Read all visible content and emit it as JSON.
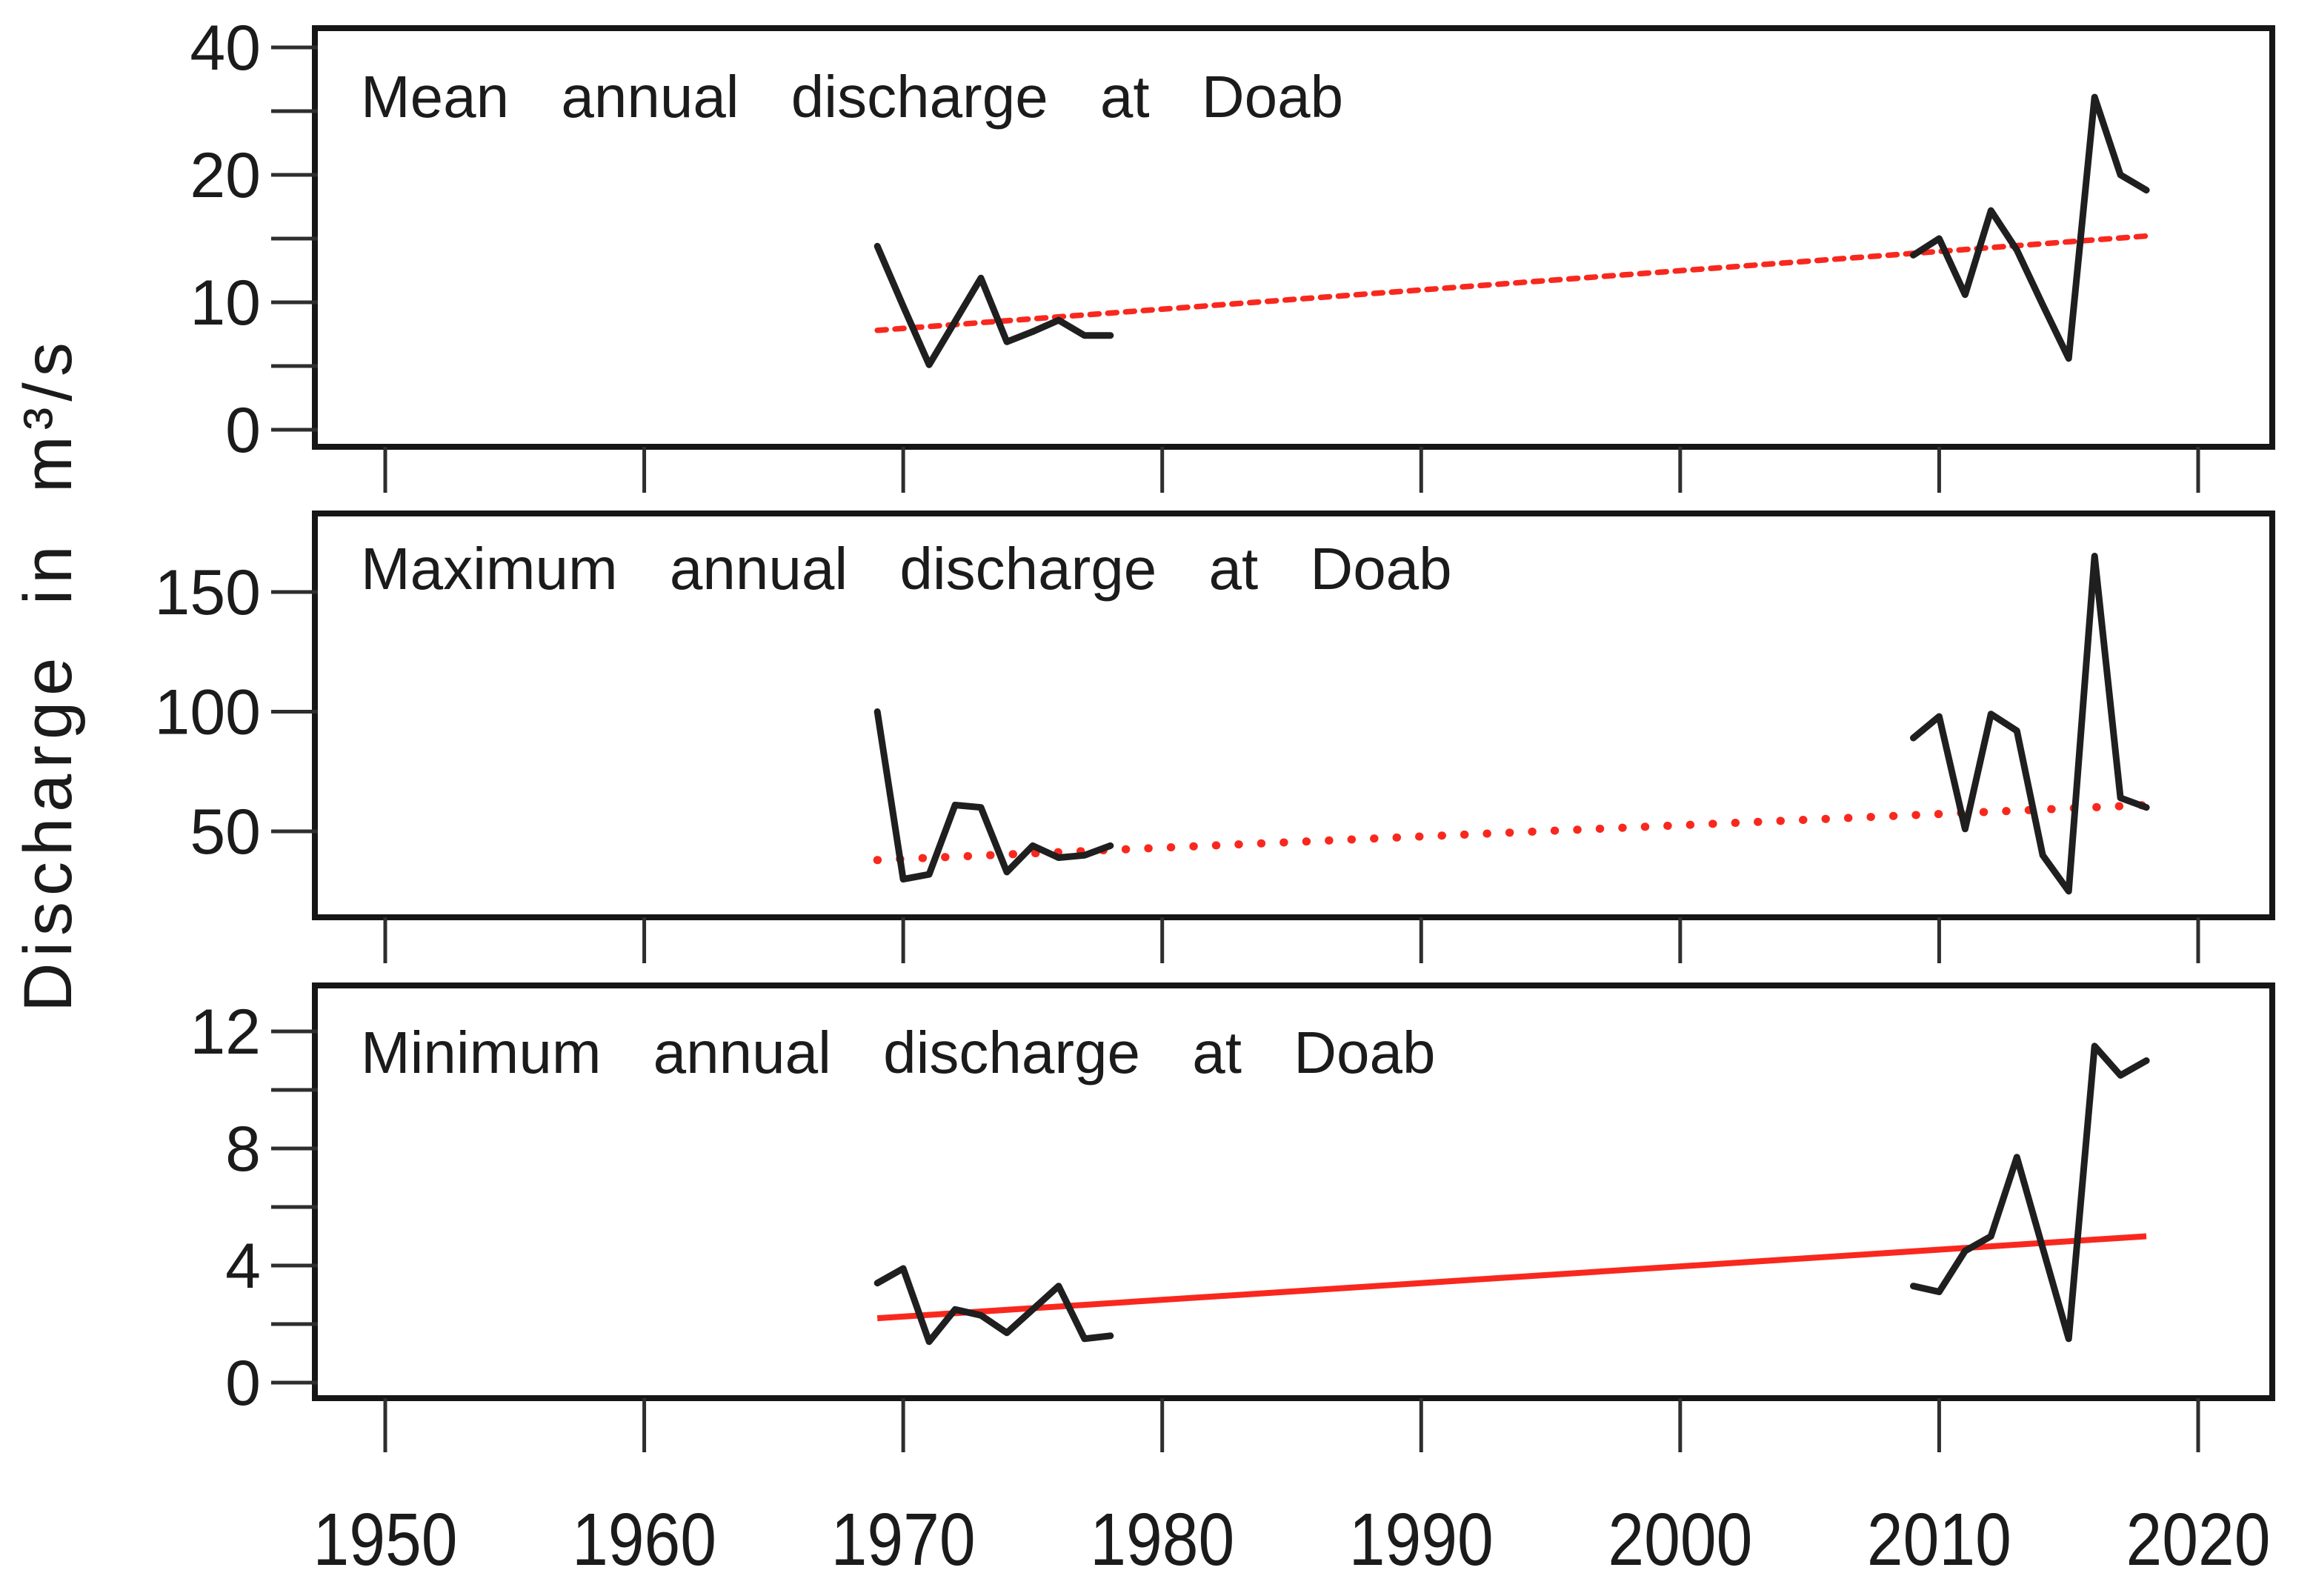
{
  "figure": {
    "ylabel": "Discharge in m³/s"
  },
  "x_axis": {
    "tick_years": [
      1950,
      1960,
      1970,
      1980,
      1990,
      2000,
      2010,
      2020
    ],
    "tick_labels": [
      "1950",
      "1960",
      "1970",
      "1980",
      "1990",
      "2000",
      "2010",
      "2020"
    ]
  },
  "colors": {
    "data_line": "#1f1f1f",
    "trend_line": "#f9281e",
    "frame": "#161616",
    "tick": "#2e2e2e",
    "background": "#ffffff"
  },
  "chart_data": [
    {
      "type": "line",
      "title": "Mean annual discharge at Doab",
      "y_axis": {
        "tick_values": [
          40,
          20,
          10,
          0
        ],
        "tick_labels": [
          "40",
          "20",
          "10",
          "0"
        ],
        "minor_tick_values": [
          30,
          15,
          5
        ],
        "scale_note": "nonlinear axis: ticks 0,5,10,15,20,30,40 equally spaced"
      },
      "series": [
        {
          "name": "mean annual discharge",
          "segments": [
            {
              "years": [
                1969,
                1970,
                1971,
                1972,
                1973,
                1974,
                1975,
                1976,
                1977,
                1978
              ],
              "values": [
                14.4,
                9.7,
                5.1,
                8.5,
                11.9,
                6.9,
                7.7,
                8.6,
                7.4,
                7.4
              ]
            },
            {
              "years": [
                2009,
                2010,
                2011,
                2012,
                2013,
                2014,
                2015,
                2016,
                2017,
                2018
              ],
              "values": [
                13.7,
                15.0,
                10.6,
                17.2,
                14.1,
                9.8,
                5.6,
                32.2,
                20.0,
                18.8
              ]
            }
          ]
        }
      ],
      "trend": {
        "style": "dashed",
        "start_year": 1969,
        "start_value": 7.8,
        "end_year": 2018,
        "end_value": 15.2
      }
    },
    {
      "type": "line",
      "title": "Maximum annual discharge at Doab",
      "y_axis": {
        "tick_values": [
          150,
          100,
          50
        ],
        "tick_labels": [
          "150",
          "100",
          "50"
        ],
        "minor_tick_values": [],
        "scale_note": "linear"
      },
      "series": [
        {
          "name": "maximum annual discharge",
          "segments": [
            {
              "years": [
                1969,
                1970,
                1971,
                1972,
                1973,
                1974,
                1975,
                1976,
                1977,
                1978
              ],
              "values": [
                100,
                30,
                32,
                61,
                60,
                33,
                44,
                39,
                40,
                44
              ]
            },
            {
              "years": [
                2009,
                2010,
                2011,
                2012,
                2013,
                2014,
                2015,
                2016,
                2017,
                2018
              ],
              "values": [
                89,
                98,
                51,
                99,
                92,
                40,
                25,
                165,
                64,
                60
              ]
            }
          ]
        }
      ],
      "trend": {
        "style": "dotted",
        "start_year": 1969,
        "start_value": 38,
        "end_year": 2018,
        "end_value": 61
      }
    },
    {
      "type": "line",
      "title": "Minimum annual discharge at Doab",
      "y_axis": {
        "tick_values": [
          12,
          8,
          4,
          0
        ],
        "tick_labels": [
          "12",
          "8",
          "4",
          "0"
        ],
        "minor_tick_values": [
          10,
          6,
          2
        ],
        "scale_note": "linear"
      },
      "series": [
        {
          "name": "minimum annual discharge",
          "segments": [
            {
              "years": [
                1969,
                1970,
                1971,
                1972,
                1973,
                1974,
                1975,
                1976,
                1977,
                1978
              ],
              "values": [
                3.4,
                3.9,
                1.4,
                2.5,
                2.3,
                1.7,
                2.5,
                3.3,
                1.5,
                1.6
              ]
            },
            {
              "years": [
                2009,
                2010,
                2011,
                2012,
                2013,
                2014,
                2015,
                2016,
                2017,
                2018
              ],
              "values": [
                3.3,
                3.1,
                4.5,
                5.0,
                7.7,
                4.6,
                1.5,
                11.5,
                10.5,
                11.0
              ]
            }
          ]
        }
      ],
      "trend": {
        "style": "solid",
        "start_year": 1969,
        "start_value": 2.2,
        "end_year": 2018,
        "end_value": 5.0
      }
    }
  ]
}
